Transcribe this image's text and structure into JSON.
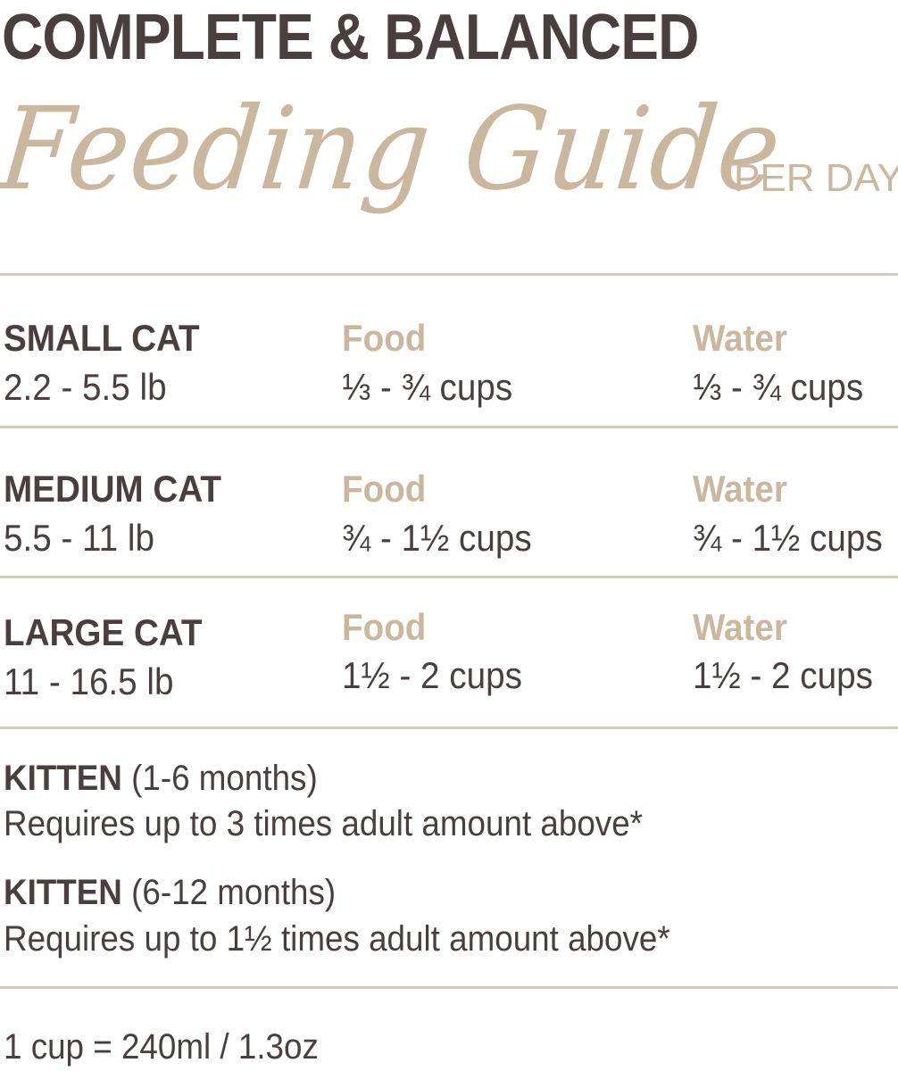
{
  "header": {
    "title": "COMPLETE & BALANCED",
    "script_title": "Feeding Guide",
    "per_day": "PER DAY"
  },
  "rows": [
    {
      "size": "SMALL CAT",
      "weight": "2.2 - 5.5 lb",
      "food_label": "Food",
      "food": "⅓ - ¾ cups",
      "water_label": "Water",
      "water": "⅓ - ¾ cups"
    },
    {
      "size": "MEDIUM CAT",
      "weight": "5.5 - 11 lb",
      "food_label": "Food",
      "food": "¾ - 1½ cups",
      "water_label": "Water",
      "water": "¾ - 1½ cups"
    },
    {
      "size": "LARGE CAT",
      "weight": "11 - 16.5 lb",
      "food_label": "Food",
      "food": "1½ - 2 cups",
      "water_label": "Water",
      "water": "1½ - 2 cups"
    }
  ],
  "kittens": [
    {
      "label": "KITTEN",
      "age": " (1-6 months)",
      "note": "Requires up to 3 times adult amount above*"
    },
    {
      "label": "KITTEN",
      "age": " (6-12 months)",
      "note": "Requires up to 1½ times adult amount above*"
    }
  ],
  "footer": {
    "conversion": "1 cup = 240ml / 1.3oz"
  },
  "colors": {
    "dark": "#4a3f3f",
    "tan": "#c9b89d",
    "rule": "#d6cbb9"
  }
}
